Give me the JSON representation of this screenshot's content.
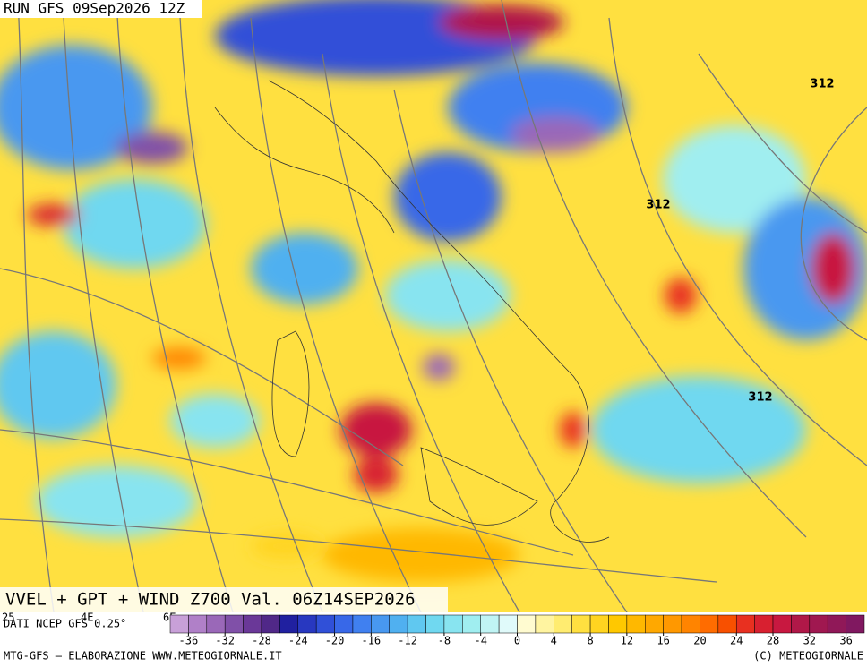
{
  "header": {
    "run": "RUN GFS 09Sep2026 12Z",
    "title": "VVEL + GPT + WIND Z700 Val. 06Z14SEP2026",
    "source": "DATI NCEP GFS 0.25°"
  },
  "axis_labels": [
    "25",
    "4E",
    "6E"
  ],
  "contour_labels": [
    "312",
    "312",
    "312"
  ],
  "colorbar": {
    "lim": [
      -38,
      38
    ],
    "ticks": [
      -36,
      -32,
      -28,
      -24,
      -20,
      -16,
      -12,
      -8,
      -4,
      0,
      4,
      8,
      12,
      16,
      20,
      24,
      28,
      32,
      36
    ],
    "colors": [
      "#c8a0d8",
      "#b080c8",
      "#9a68b8",
      "#8050a8",
      "#6a3898",
      "#502888",
      "#2020a0",
      "#2838c0",
      "#3050d8",
      "#3868e8",
      "#4080f0",
      "#4898f0",
      "#50b0f0",
      "#60c8f0",
      "#70d8f0",
      "#88e4f0",
      "#a0eef0",
      "#c0f4f4",
      "#e0fafa",
      "#fffbd0",
      "#fff4a0",
      "#ffec70",
      "#ffe040",
      "#ffd420",
      "#ffc800",
      "#ffb800",
      "#ffa800",
      "#ff9800",
      "#ff8400",
      "#ff6c00",
      "#f85000",
      "#e83020",
      "#d82030",
      "#c81840",
      "#b01848",
      "#a01850",
      "#901858",
      "#801860"
    ]
  },
  "footer": {
    "left": "MTG-GFS – ELABORAZIONE WWW.METEOGIORNALE.IT",
    "right": "(C) METEOGIORNALE"
  }
}
